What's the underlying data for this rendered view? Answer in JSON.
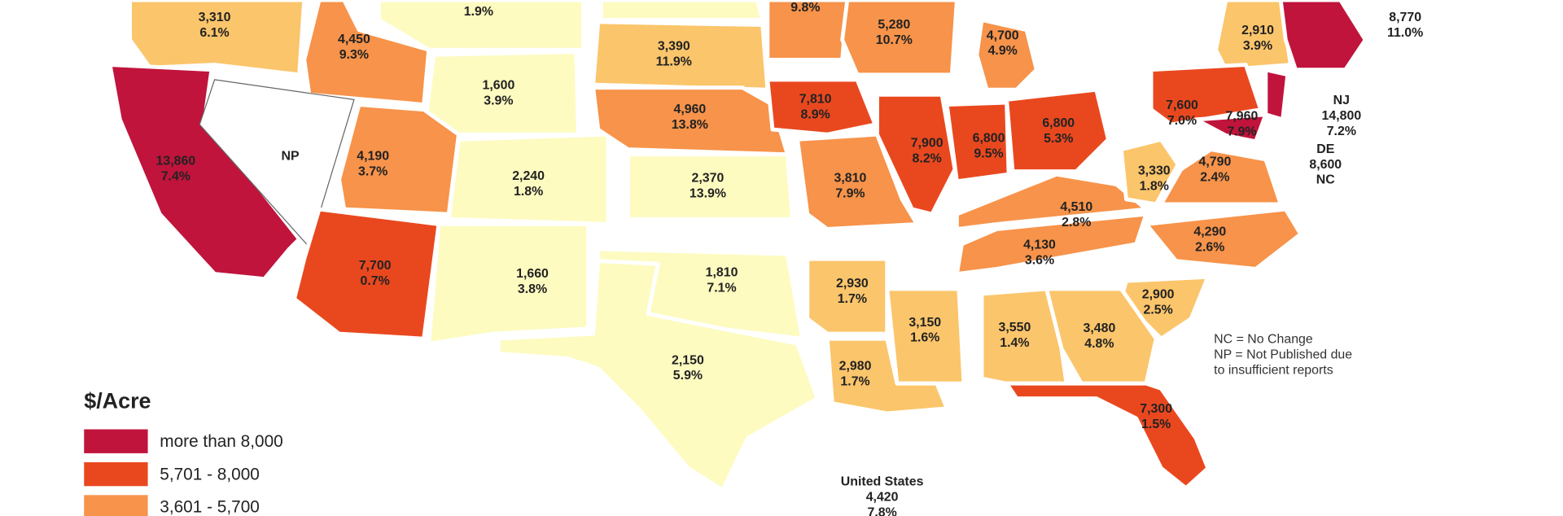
{
  "map": {
    "labels": [
      {
        "lines": [
          "1.9%"
        ]
      },
      {
        "lines": [
          "3,310",
          "6.1%"
        ]
      },
      {
        "lines": [
          "4,450",
          "9.3%"
        ]
      },
      {
        "lines": [
          "9.8%"
        ]
      },
      {
        "lines": [
          "5,280",
          "10.7%"
        ]
      },
      {
        "lines": [
          "4,700",
          "4.9%"
        ]
      },
      {
        "lines": [
          "2,910",
          "3.9%"
        ]
      },
      {
        "lines": [
          "8,770",
          "11.0%"
        ]
      },
      {
        "lines": [
          "3,390",
          "11.9%"
        ]
      },
      {
        "lines": [
          "1,600",
          "3.9%"
        ]
      },
      {
        "lines": [
          "4,960",
          "13.8%"
        ]
      },
      {
        "lines": [
          "7,810",
          "8.9%"
        ]
      },
      {
        "lines": [
          "7,600",
          "7.0%"
        ]
      },
      {
        "lines": [
          "NJ",
          "14,800",
          "7.2%"
        ]
      },
      {
        "lines": [
          "7,960",
          "7.9%"
        ]
      },
      {
        "lines": [
          "DE",
          "8,600",
          "NC"
        ]
      },
      {
        "lines": [
          "13,860",
          "7.4%"
        ]
      },
      {
        "lines": [
          "NP"
        ]
      },
      {
        "lines": [
          "4,190",
          "3.7%"
        ]
      },
      {
        "lines": [
          "2,240",
          "1.8%"
        ]
      },
      {
        "lines": [
          "2,370",
          "13.9%"
        ]
      },
      {
        "lines": [
          "7,900",
          "8.2%"
        ]
      },
      {
        "lines": [
          "6,800",
          "9.5%"
        ]
      },
      {
        "lines": [
          "6,800",
          "5.3%"
        ]
      },
      {
        "lines": [
          "3,810",
          "7.9%"
        ]
      },
      {
        "lines": [
          "3,330",
          "1.8%"
        ]
      },
      {
        "lines": [
          "4,790",
          "2.4%"
        ]
      },
      {
        "lines": [
          "4,510",
          "2.8%"
        ]
      },
      {
        "lines": [
          "4,290",
          "2.6%"
        ]
      },
      {
        "lines": [
          "4,130",
          "3.6%"
        ]
      },
      {
        "lines": [
          "7,700",
          "0.7%"
        ]
      },
      {
        "lines": [
          "1,660",
          "3.8%"
        ]
      },
      {
        "lines": [
          "1,810",
          "7.1%"
        ]
      },
      {
        "lines": [
          "2,930",
          "1.7%"
        ]
      },
      {
        "lines": [
          "3,150",
          "1.6%"
        ]
      },
      {
        "lines": [
          "2,980",
          "1.7%"
        ]
      },
      {
        "lines": [
          "3,550",
          "1.4%"
        ]
      },
      {
        "lines": [
          "3,480",
          "4.8%"
        ]
      },
      {
        "lines": [
          "2,900",
          "2.5%"
        ]
      },
      {
        "lines": [
          "2,150",
          "5.9%"
        ]
      },
      {
        "lines": [
          "7,300",
          "1.5%"
        ]
      },
      {
        "lines": [
          "United States",
          "4,420",
          "7.8%"
        ]
      }
    ],
    "notes": [
      "NC = No Change",
      "NP = Not Published due",
      "to insufficient reports"
    ],
    "legend": {
      "title": "$/Acre",
      "items": [
        {
          "label": "more than 8,000",
          "color": "#c0143c"
        },
        {
          "label": "5,701 - 8,000",
          "color": "#e9481f"
        },
        {
          "label": "3,601 - 5,700",
          "color": "#f7934a"
        }
      ]
    }
  }
}
